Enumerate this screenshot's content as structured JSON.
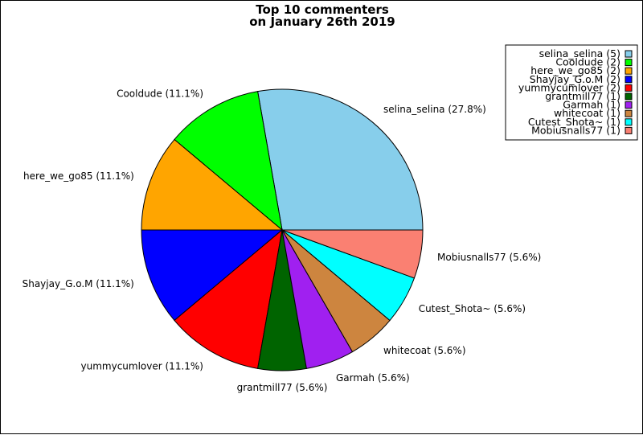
{
  "chart_data": {
    "type": "pie",
    "title": "Top 10 commenters",
    "subtitle": "on January 26th 2019",
    "legend_position": "top-right",
    "slices": [
      {
        "name": "selina_selina",
        "value": 5,
        "percent_label": "selina_selina (27.8%)",
        "legend_label": "selina_selina (5)",
        "color": "#87CEEB"
      },
      {
        "name": "Cooldude",
        "value": 2,
        "percent_label": "Cooldude (11.1%)",
        "legend_label": "Cooldude (2)",
        "color": "#00FF00"
      },
      {
        "name": "here_we_go85",
        "value": 2,
        "percent_label": "here_we_go85 (11.1%)",
        "legend_label": "here_we_go85 (2)",
        "color": "#FFA500"
      },
      {
        "name": "Shayjay_G.o.M",
        "value": 2,
        "percent_label": "Shayjay_G.o.M (11.1%)",
        "legend_label": "Shayjay_G.o.M (2)",
        "color": "#0000FF"
      },
      {
        "name": "yummycumlover",
        "value": 2,
        "percent_label": "yummycumlover (11.1%)",
        "legend_label": "yummycumlover (2)",
        "color": "#FF0000"
      },
      {
        "name": "grantmill77",
        "value": 1,
        "percent_label": "grantmill77 (5.6%)",
        "legend_label": "grantmill77 (1)",
        "color": "#006400"
      },
      {
        "name": "Garmah",
        "value": 1,
        "percent_label": "Garmah (5.6%)",
        "legend_label": "Garmah (1)",
        "color": "#A020F0"
      },
      {
        "name": "whitecoat",
        "value": 1,
        "percent_label": "whitecoat (5.6%)",
        "legend_label": "whitecoat (1)",
        "color": "#CD853F"
      },
      {
        "name": "Cutest_Shota~",
        "value": 1,
        "percent_label": "Cutest_Shota~ (5.6%)",
        "legend_label": "Cutest_Shota~ (1)",
        "color": "#00FFFF"
      },
      {
        "name": "Mobiusnalls77",
        "value": 1,
        "percent_label": "Mobiusnalls77 (5.6%)",
        "legend_label": "Mobiusnalls77 (1)",
        "color": "#FA8072"
      }
    ]
  }
}
